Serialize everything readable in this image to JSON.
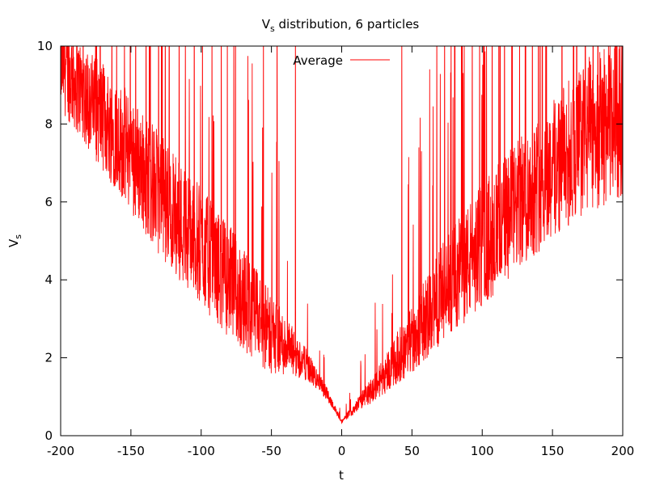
{
  "chart_data": {
    "type": "line",
    "title": "V",
    "title_subscript": "s",
    "title_suffix": " distribution, 6 particles",
    "xlabel": "t",
    "ylabel": "V",
    "ylabel_subscript": "s",
    "xlim": [
      -200,
      200
    ],
    "ylim": [
      0,
      10
    ],
    "xticks": [
      -200,
      -150,
      -100,
      -50,
      0,
      50,
      100,
      150,
      200
    ],
    "yticks": [
      0,
      2,
      4,
      6,
      8,
      10
    ],
    "grid": false,
    "legend_position": "top-center",
    "series": [
      {
        "name": "Average",
        "color": "#ff0000",
        "envelope": {
          "x": [
            -200,
            -175,
            -150,
            -125,
            -100,
            -75,
            -50,
            -25,
            -10,
            0,
            10,
            25,
            50,
            75,
            100,
            125,
            150,
            175,
            200
          ],
          "base": [
            9.2,
            8.0,
            6.8,
            5.5,
            4.4,
            3.3,
            2.3,
            1.7,
            1.0,
            0.35,
            0.7,
            1.2,
            2.2,
            3.4,
            4.4,
            5.4,
            6.3,
            7.1,
            7.6
          ],
          "spread": [
            1.5,
            1.7,
            1.9,
            2.0,
            1.9,
            1.8,
            1.3,
            0.5,
            0.2,
            0.05,
            0.2,
            0.5,
            1.1,
            1.7,
            2.0,
            2.1,
            2.3,
            2.5,
            2.6
          ]
        }
      }
    ]
  }
}
